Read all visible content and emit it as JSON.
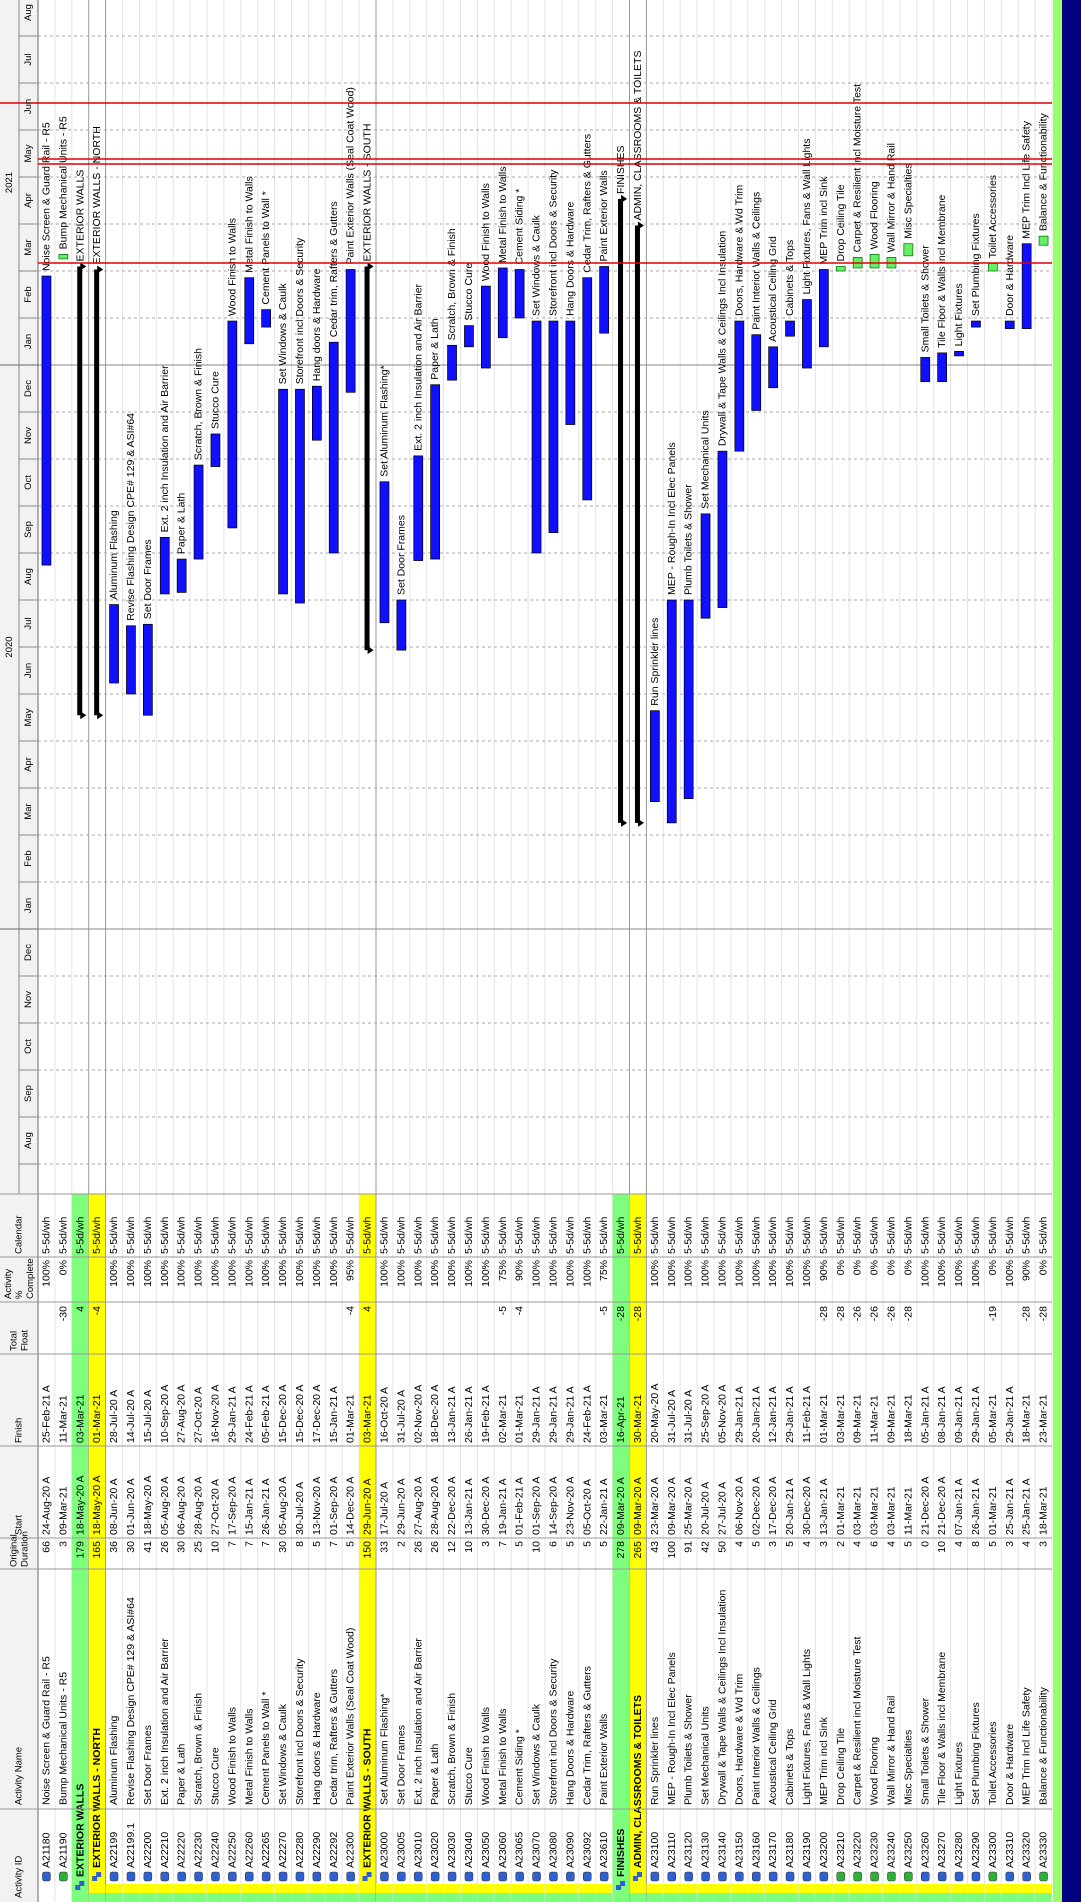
{
  "header": {
    "activity_id": "Activity ID",
    "activity_name": "Activity Name",
    "original_duration": "Original Duration",
    "start": "Start",
    "finish": "Finish",
    "total_float": "Total Float",
    "complete": "Activity % Complete",
    "calendar": "Calendar"
  },
  "timeline": {
    "years": [
      "2020",
      "2021"
    ],
    "months": [
      "Aug",
      "Sep",
      "Oct",
      "Nov",
      "Dec",
      "Jan",
      "Feb",
      "Mar",
      "Apr",
      "May",
      "Jun",
      "Jul",
      "Aug",
      "Sep",
      "Oct",
      "Nov",
      "Dec",
      "Jan",
      "Feb",
      "Mar",
      "Apr",
      "May",
      "Jun",
      "Jul",
      "Aug"
    ]
  },
  "table": {
    "top_rows": [
      {
        "id": "A21180",
        "name": "Noise Screen & Guard Rail - R5",
        "duration": 66,
        "start": "24-Aug-20 A",
        "finish": "25-Feb-21 A",
        "complete": "100%",
        "calendar": "5-5d/wh"
      },
      {
        "id": "A21190",
        "name": "Bump Mechanical Units - R5",
        "duration": 3,
        "start": "09-Mar-21",
        "finish": "11-Mar-21",
        "float": -30,
        "complete": "0%",
        "calendar": "5-5d/wh"
      }
    ],
    "groups": [
      {
        "name": "EXTERIOR WALLS",
        "duration": 179,
        "start": "18-May-20 A",
        "finish": "03-Mar-21",
        "float": 4,
        "calendar": "5-5d/wh",
        "subgroups": [
          {
            "name": "EXTERIOR WALLS - NORTH",
            "duration": 165,
            "start": "18-May-20 A",
            "finish": "01-Mar-21",
            "float": -4,
            "calendar": "5-5d/wh",
            "rows": [
              {
                "id": "A22199",
                "name": "Aluminum Flashing",
                "duration": 36,
                "start": "08-Jun-20 A",
                "finish": "28-Jul-20 A",
                "complete": "100%",
                "calendar": "5-5d/wh"
              },
              {
                "id": "A22199.1",
                "name": "Revise Flashing Design CPE# 129 & ASI#64",
                "duration": 30,
                "start": "01-Jun-20 A",
                "finish": "14-Jul-20 A",
                "complete": "100%",
                "calendar": "5-5d/wh"
              },
              {
                "id": "A22200",
                "name": "Set Door Frames",
                "duration": 41,
                "start": "18-May-20 A",
                "finish": "15-Jul-20 A",
                "complete": "100%",
                "calendar": "5-5d/wh"
              },
              {
                "id": "A22210",
                "name": "Ext. 2 inch Insulation and Air Barrier",
                "duration": 26,
                "start": "05-Aug-20 A",
                "finish": "10-Sep-20 A",
                "complete": "100%",
                "calendar": "5-5d/wh"
              },
              {
                "id": "A22220",
                "name": "Paper & Lath",
                "duration": 30,
                "start": "06-Aug-20 A",
                "finish": "27-Aug-20 A",
                "complete": "100%",
                "calendar": "5-5d/wh"
              },
              {
                "id": "A22230",
                "name": "Scratch, Brown & Finish",
                "duration": 25,
                "start": "28-Aug-20 A",
                "finish": "27-Oct-20 A",
                "complete": "100%",
                "calendar": "5-5d/wh"
              },
              {
                "id": "A22240",
                "name": "Stucco Cure",
                "duration": 10,
                "start": "27-Oct-20 A",
                "finish": "16-Nov-20 A",
                "complete": "100%",
                "calendar": "5-5d/wh"
              },
              {
                "id": "A22250",
                "name": "Wood Finish to Walls",
                "duration": 7,
                "start": "17-Sep-20 A",
                "finish": "29-Jan-21 A",
                "complete": "100%",
                "calendar": "5-5d/wh"
              },
              {
                "id": "A22260",
                "name": "Metal Finish to Walls",
                "duration": 7,
                "start": "15-Jan-21 A",
                "finish": "24-Feb-21 A",
                "complete": "100%",
                "calendar": "5-5d/wh"
              },
              {
                "id": "A22265",
                "name": "Cement Panels to Wall *",
                "duration": 7,
                "start": "26-Jan-21 A",
                "finish": "05-Feb-21 A",
                "complete": "100%",
                "calendar": "5-5d/wh"
              },
              {
                "id": "A22270",
                "name": "Set Windows & Caulk",
                "duration": 30,
                "start": "05-Aug-20 A",
                "finish": "15-Dec-20 A",
                "complete": "100%",
                "calendar": "5-5d/wh"
              },
              {
                "id": "A22280",
                "name": "Storefront incl Doors & Security",
                "duration": 8,
                "start": "30-Jul-20 A",
                "finish": "15-Dec-20 A",
                "complete": "100%",
                "calendar": "5-5d/wh"
              },
              {
                "id": "A22290",
                "name": "Hang doors & Hardware",
                "duration": 5,
                "start": "13-Nov-20 A",
                "finish": "17-Dec-20 A",
                "complete": "100%",
                "calendar": "5-5d/wh"
              },
              {
                "id": "A22292",
                "name": "Cedar trim, Rafters & Gutters",
                "duration": 7,
                "start": "01-Sep-20 A",
                "finish": "15-Jan-21 A",
                "complete": "100%",
                "calendar": "5-5d/wh"
              },
              {
                "id": "A22300",
                "name": "Paint Exterior Walls (Seal Coat Wood)",
                "duration": 5,
                "start": "14-Dec-20 A",
                "finish": "01-Mar-21",
                "float": -4,
                "complete": "95%",
                "calendar": "5-5d/wh"
              }
            ]
          },
          {
            "name": "EXTERIOR WALLS - SOUTH",
            "duration": 150,
            "start": "29-Jun-20 A",
            "finish": "03-Mar-21",
            "float": 4,
            "calendar": "5-5d/wh",
            "rows": [
              {
                "id": "A23000",
                "name": "Set Aluminum Flashing*",
                "duration": 33,
                "start": "17-Jul-20 A",
                "finish": "16-Oct-20 A",
                "complete": "100%",
                "calendar": "5-5d/wh"
              },
              {
                "id": "A23005",
                "name": "Set Door Frames",
                "duration": 2,
                "start": "29-Jun-20 A",
                "finish": "31-Jul-20 A",
                "complete": "100%",
                "calendar": "5-5d/wh"
              },
              {
                "id": "A23010",
                "name": "Ext. 2 inch Insulation and Air Barrier",
                "duration": 26,
                "start": "27-Aug-20 A",
                "finish": "02-Nov-20 A",
                "complete": "100%",
                "calendar": "5-5d/wh"
              },
              {
                "id": "A23020",
                "name": "Paper & Lath",
                "duration": 26,
                "start": "28-Aug-20 A",
                "finish": "18-Dec-20 A",
                "complete": "100%",
                "calendar": "5-5d/wh"
              },
              {
                "id": "A23030",
                "name": "Scratch, Brown & Finish",
                "duration": 12,
                "start": "22-Dec-20 A",
                "finish": "13-Jan-21 A",
                "complete": "100%",
                "calendar": "5-5d/wh"
              },
              {
                "id": "A23040",
                "name": "Stucco Cure",
                "duration": 10,
                "start": "13-Jan-21 A",
                "finish": "26-Jan-21 A",
                "complete": "100%",
                "calendar": "5-5d/wh"
              },
              {
                "id": "A23050",
                "name": "Wood Finish to Walls",
                "duration": 3,
                "start": "30-Dec-20 A",
                "finish": "19-Feb-21 A",
                "complete": "100%",
                "calendar": "5-5d/wh"
              },
              {
                "id": "A23060",
                "name": "Metal Finish to Walls",
                "duration": 7,
                "start": "19-Jan-21 A",
                "finish": "02-Mar-21",
                "float": -5,
                "complete": "75%",
                "calendar": "5-5d/wh"
              },
              {
                "id": "A23065",
                "name": "Cement Siding *",
                "duration": 5,
                "start": "01-Feb-21 A",
                "finish": "01-Mar-21",
                "float": -4,
                "complete": "90%",
                "calendar": "5-5d/wh"
              },
              {
                "id": "A23070",
                "name": "Set Windows & Caulk",
                "duration": 10,
                "start": "01-Sep-20 A",
                "finish": "29-Jan-21 A",
                "complete": "100%",
                "calendar": "5-5d/wh"
              },
              {
                "id": "A23080",
                "name": "Storefront incl Doors & Security",
                "duration": 6,
                "start": "14-Sep-20 A",
                "finish": "29-Jan-21 A",
                "complete": "100%",
                "calendar": "5-5d/wh"
              },
              {
                "id": "A23090",
                "name": "Hang Doors & Hardware",
                "duration": 5,
                "start": "23-Nov-20 A",
                "finish": "29-Jan-21 A",
                "complete": "100%",
                "calendar": "5-5d/wh"
              },
              {
                "id": "A23092",
                "name": "Cedar Trim, Rafters & Gutters",
                "duration": 5,
                "start": "05-Oct-20 A",
                "finish": "24-Feb-21 A",
                "complete": "100%",
                "calendar": "5-5d/wh"
              },
              {
                "id": "A23610",
                "name": "Paint Exterior Walls",
                "duration": 5,
                "start": "22-Jan-21 A",
                "finish": "03-Mar-21",
                "float": -5,
                "complete": "75%",
                "calendar": "5-5d/wh"
              }
            ]
          }
        ]
      },
      {
        "name": "FINISHES",
        "duration": 278,
        "start": "09-Mar-20 A",
        "finish": "16-Apr-21",
        "float": -28,
        "calendar": "5-5d/wh",
        "subgroups": [
          {
            "name": "ADMIN, CLASSROOMS & TOILETS",
            "duration": 265,
            "start": "09-Mar-20 A",
            "finish": "30-Mar-21",
            "float": -28,
            "calendar": "5-5d/wh",
            "rows": [
              {
                "id": "A23100",
                "name": "Run Sprinkler lines",
                "duration": 43,
                "start": "23-Mar-20 A",
                "finish": "20-May-20 A",
                "complete": "100%",
                "calendar": "5-5d/wh"
              },
              {
                "id": "A23110",
                "name": "MEP - Rough-In Incl Elec Panels",
                "duration": 100,
                "start": "09-Mar-20 A",
                "finish": "31-Jul-20 A",
                "complete": "100%",
                "calendar": "5-5d/wh"
              },
              {
                "id": "A23120",
                "name": "Plumb Toilets & Shower",
                "duration": 91,
                "start": "25-Mar-20 A",
                "finish": "31-Jul-20 A",
                "complete": "100%",
                "calendar": "5-5d/wh"
              },
              {
                "id": "A23130",
                "name": "Set Mechanical Units",
                "duration": 42,
                "start": "20-Jul-20 A",
                "finish": "25-Sep-20 A",
                "complete": "100%",
                "calendar": "5-5d/wh"
              },
              {
                "id": "A23140",
                "name": "Drywall & Tape Walls & Ceilings Incl Insulation",
                "duration": 50,
                "start": "27-Jul-20 A",
                "finish": "05-Nov-20 A",
                "complete": "100%",
                "calendar": "5-5d/wh"
              },
              {
                "id": "A23150",
                "name": "Doors, Hardware & Wd Trim",
                "duration": 4,
                "start": "06-Nov-20 A",
                "finish": "29-Jan-21 A",
                "complete": "100%",
                "calendar": "5-5d/wh"
              },
              {
                "id": "A23160",
                "name": "Paint Interior Walls & Ceilings",
                "duration": 5,
                "start": "02-Dec-20 A",
                "finish": "20-Jan-21 A",
                "complete": "100%",
                "calendar": "5-5d/wh"
              },
              {
                "id": "A23170",
                "name": "Acoustical Ceiling Grid",
                "duration": 3,
                "start": "17-Dec-20 A",
                "finish": "12-Jan-21 A",
                "complete": "100%",
                "calendar": "5-5d/wh"
              },
              {
                "id": "A23180",
                "name": "Cabinets & Tops",
                "duration": 5,
                "start": "20-Jan-21 A",
                "finish": "29-Jan-21 A",
                "complete": "100%",
                "calendar": "5-5d/wh"
              },
              {
                "id": "A23190",
                "name": "Light Fixtures, Fans & Wall Lights",
                "duration": 4,
                "start": "30-Dec-20 A",
                "finish": "11-Feb-21 A",
                "complete": "100%",
                "calendar": "5-5d/wh"
              },
              {
                "id": "A23200",
                "name": "MEP Trim incl Sink",
                "duration": 3,
                "start": "13-Jan-21 A",
                "finish": "01-Mar-21",
                "float": -28,
                "complete": "90%",
                "calendar": "5-5d/wh"
              },
              {
                "id": "A23210",
                "name": "Drop Ceiling Tile",
                "duration": 2,
                "start": "01-Mar-21",
                "finish": "03-Mar-21",
                "float": -28,
                "complete": "0%",
                "calendar": "5-5d/wh"
              },
              {
                "id": "A23220",
                "name": "Carpet & Resilient incl Moisture Test",
                "duration": 4,
                "start": "03-Mar-21",
                "finish": "09-Mar-21",
                "float": -26,
                "complete": "0%",
                "calendar": "5-5d/wh"
              },
              {
                "id": "A23230",
                "name": "Wood Flooring",
                "duration": 6,
                "start": "03-Mar-21",
                "finish": "11-Mar-21",
                "float": -26,
                "complete": "0%",
                "calendar": "5-5d/wh"
              },
              {
                "id": "A23240",
                "name": "Wall Mirror & Hand Rail",
                "duration": 4,
                "start": "03-Mar-21",
                "finish": "09-Mar-21",
                "float": -26,
                "complete": "0%",
                "calendar": "5-5d/wh"
              },
              {
                "id": "A23250",
                "name": "Misc Specialties",
                "duration": 5,
                "start": "11-Mar-21",
                "finish": "18-Mar-21",
                "float": -28,
                "complete": "0%",
                "calendar": "5-5d/wh"
              },
              {
                "id": "A23260",
                "name": "Small Toilets & Shower",
                "duration": 0,
                "start": "21-Dec-20 A",
                "finish": "05-Jan-21 A",
                "complete": "100%",
                "calendar": "5-5d/wh"
              },
              {
                "id": "A23270",
                "name": "Tile Floor & Walls incl Membrane",
                "duration": 10,
                "start": "21-Dec-20 A",
                "finish": "08-Jan-21 A",
                "complete": "100%",
                "calendar": "5-5d/wh"
              },
              {
                "id": "A23280",
                "name": "Light Fixtures",
                "duration": 4,
                "start": "07-Jan-21 A",
                "finish": "09-Jan-21 A",
                "complete": "100%",
                "calendar": "5-5d/wh"
              },
              {
                "id": "A23290",
                "name": "Set Plumbing Fixtures",
                "duration": 8,
                "start": "26-Jan-21 A",
                "finish": "29-Jan-21 A",
                "complete": "100%",
                "calendar": "5-5d/wh"
              },
              {
                "id": "A23300",
                "name": "Toilet Accessories",
                "duration": 5,
                "start": "01-Mar-21",
                "finish": "05-Mar-21",
                "float": -19,
                "complete": "0%",
                "calendar": "5-5d/wh"
              },
              {
                "id": "A23310",
                "name": "Door & Hardware",
                "duration": 3,
                "start": "25-Jan-21 A",
                "finish": "29-Jan-21 A",
                "complete": "100%",
                "calendar": "5-5d/wh"
              },
              {
                "id": "A23320",
                "name": "MEP Trim Incl Life Safety",
                "duration": 4,
                "start": "25-Jan-21 A",
                "finish": "18-Mar-21",
                "float": -28,
                "complete": "90%",
                "calendar": "5-5d/wh"
              },
              {
                "id": "A23330",
                "name": "Balance & Functionability",
                "duration": 3,
                "start": "18-Mar-21",
                "finish": "23-Mar-21",
                "float": -28,
                "complete": "0%",
                "calendar": "5-5d/wh"
              }
            ]
          }
        ]
      }
    ]
  }
}
